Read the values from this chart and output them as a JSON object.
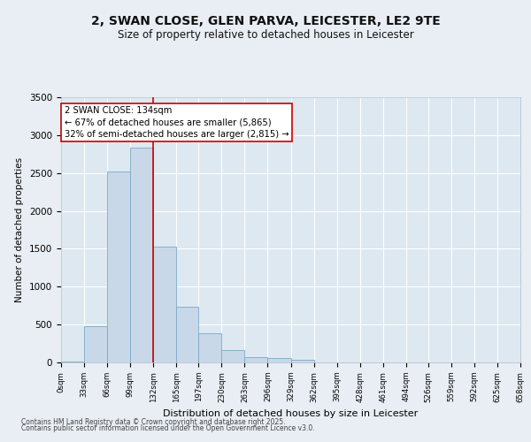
{
  "title_line1": "2, SWAN CLOSE, GLEN PARVA, LEICESTER, LE2 9TE",
  "title_line2": "Size of property relative to detached houses in Leicester",
  "xlabel": "Distribution of detached houses by size in Leicester",
  "ylabel": "Number of detached properties",
  "bar_color": "#c8d8e8",
  "bar_edge_color": "#7aaac8",
  "background_color": "#dde8f0",
  "grid_color": "#ffffff",
  "fig_background": "#e8eef4",
  "annotation_text": "2 SWAN CLOSE: 134sqm\n← 67% of detached houses are smaller (5,865)\n32% of semi-detached houses are larger (2,815) →",
  "vline_x": 132,
  "vline_color": "#cc0000",
  "bin_edges": [
    0,
    33,
    66,
    99,
    132,
    165,
    197,
    230,
    263,
    296,
    329,
    362,
    395,
    428,
    461,
    494,
    526,
    559,
    592,
    625,
    658
  ],
  "bar_heights": [
    15,
    480,
    2520,
    2840,
    1530,
    740,
    380,
    160,
    75,
    55,
    35,
    0,
    0,
    0,
    0,
    0,
    0,
    0,
    0,
    0
  ],
  "ylim": [
    0,
    3500
  ],
  "yticks": [
    0,
    500,
    1000,
    1500,
    2000,
    2500,
    3000,
    3500
  ],
  "footnote1": "Contains HM Land Registry data © Crown copyright and database right 2025.",
  "footnote2": "Contains public sector information licensed under the Open Government Licence v3.0."
}
